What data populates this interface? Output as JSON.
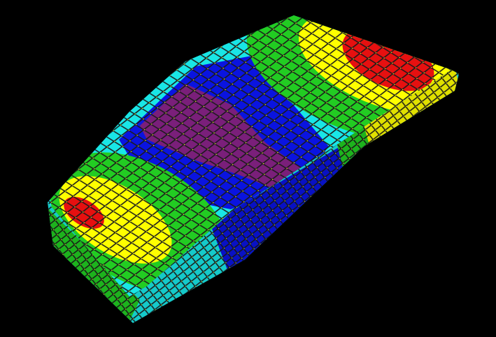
{
  "view": {
    "background": "#000000",
    "mesh_line_color": "#1a1a1a",
    "node_color": "#ffff33"
  },
  "contour_colors": {
    "level_1": "#7a1f7a",
    "level_2": "#0a14e0",
    "level_3": "#19e6e6",
    "level_4": "#22cc22",
    "level_5": "#ffff00",
    "level_6": "#e61010"
  }
}
